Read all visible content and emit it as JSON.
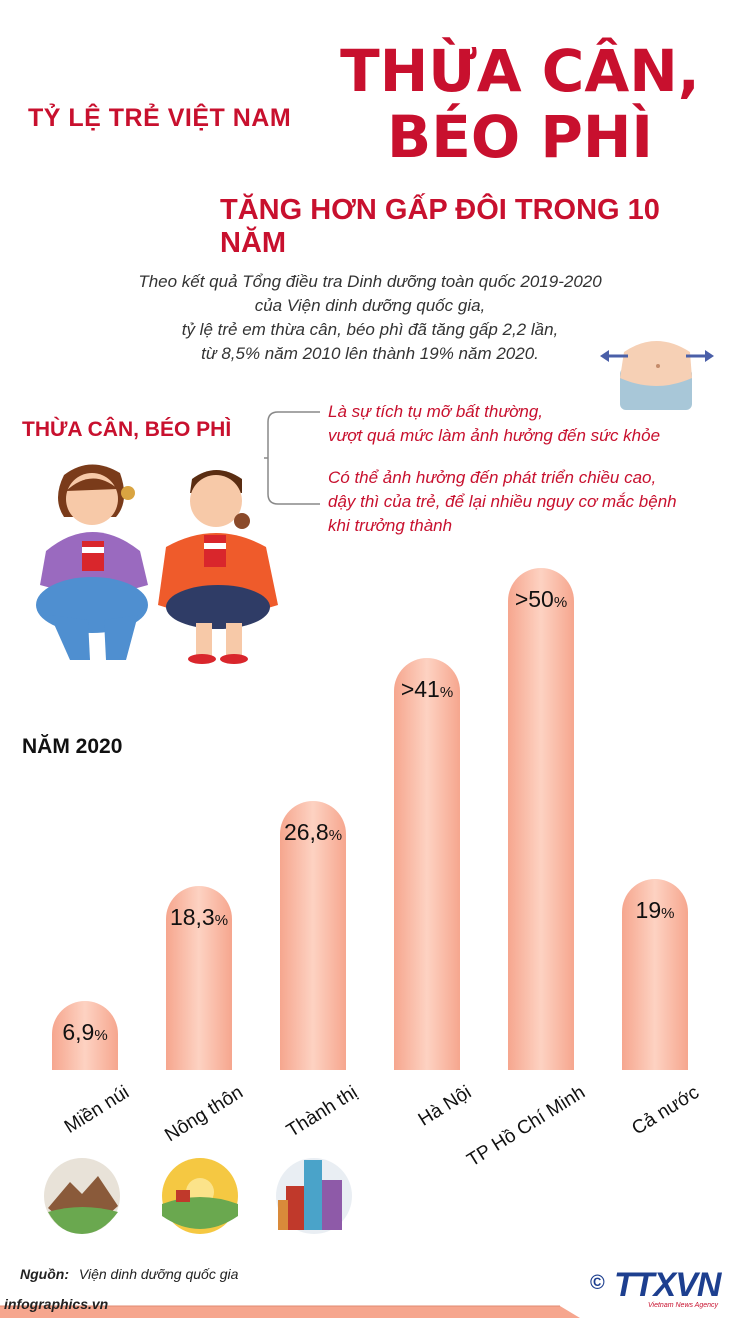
{
  "header": {
    "title_left": "TỶ LỆ TRẺ VIỆT NAM",
    "title_big_line1": "THỪA CÂN,",
    "title_big_line2": "BÉO PHÌ",
    "title_sub": "TĂNG HƠN GẤP ĐÔI  TRONG 10 NĂM"
  },
  "intro": {
    "line1": "Theo kết quả Tổng điều tra Dinh dưỡng toàn quốc 2019-2020",
    "line2": "của Viện dinh dưỡng quốc gia,",
    "line3": "tỷ lệ trẻ em thừa cân, béo phì đã tăng gấp 2,2 lần,",
    "line4": "từ 8,5% năm 2010 lên thành 19% năm 2020."
  },
  "section": {
    "title": "THỪA CÂN, BÉO PHÌ",
    "note1_line1": "Là sự tích tụ mỡ bất thường,",
    "note1_line2": "vượt quá mức làm ảnh hưởng đến sức khỏe",
    "note2_line1": "Có thể ảnh hưởng đến phát triển chiều cao,",
    "note2_line2": "dậy thì của trẻ, để lại nhiều nguy cơ mắc bệnh",
    "note2_line3": "khi trưởng thành"
  },
  "chart_data": {
    "type": "bar",
    "title": "NĂM 2020",
    "categories": [
      "Miền núi",
      "Nông thôn",
      "Thành thị",
      "Hà Nội",
      "TP Hồ Chí Minh",
      "Cả nước"
    ],
    "values": [
      6.9,
      18.3,
      26.8,
      41,
      50,
      19
    ],
    "labels": [
      "6,9",
      "18,3",
      "26,8",
      ">41",
      ">50",
      "19"
    ],
    "unit": "%",
    "ylim": [
      0,
      50
    ],
    "color": "#f6a68e"
  },
  "footer": {
    "source_label": "Nguồn:",
    "source_value": "Viện dinh dưỡng quốc gia",
    "site": "infographics.vn",
    "logo": "TTXVN",
    "logo_sub": "Vietnam News Agency",
    "copyright": "©"
  },
  "colors": {
    "accent": "#c8102e",
    "bar": "#f6a68e",
    "logo": "#1d3f8f"
  }
}
